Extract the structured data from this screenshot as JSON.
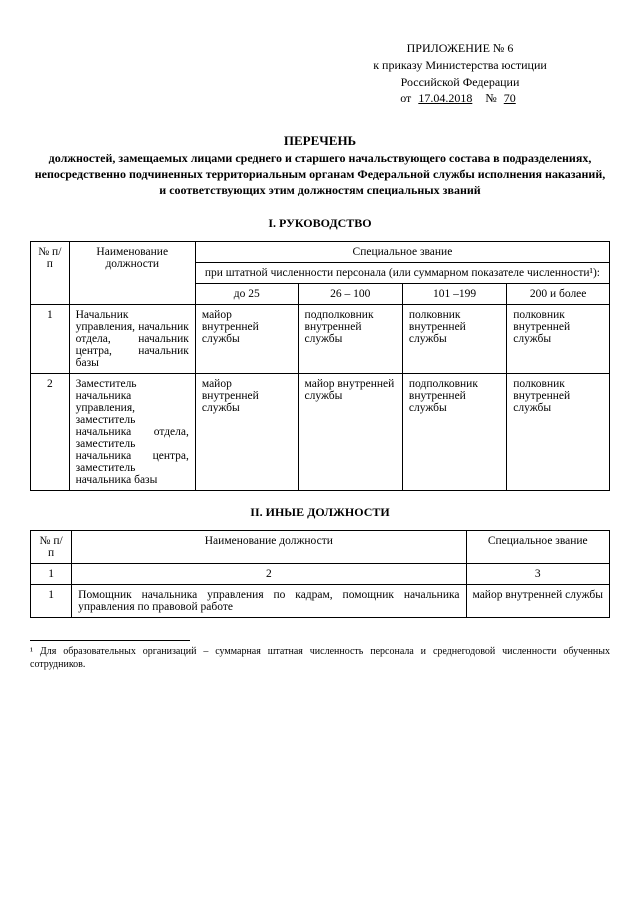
{
  "header": {
    "appendix": "ПРИЛОЖЕНИЕ № 6",
    "line1": "к приказу Министерства юстиции",
    "line2": "Российской Федерации",
    "ot": "от",
    "date": "17.04.2018",
    "no": "№",
    "number": "70"
  },
  "title": {
    "main": "ПЕРЕЧЕНЬ",
    "sub": "должностей, замещаемых лицами среднего и старшего начальствующего состава в подразделениях, непосредственно подчиненных территориальным органам Федеральной службы исполнения наказаний, и соответствующих этим должностям специальных званий"
  },
  "section1": {
    "title": "I. РУКОВОДСТВО",
    "headers": {
      "num": "№ п/п",
      "name": "Наименование должности",
      "spec": "Специальное звание",
      "staff": "при штатной численности персонала (или суммарном показателе численности¹):",
      "c1": "до 25",
      "c2": "26 – 100",
      "c3": "101 –199",
      "c4": "200 и более"
    },
    "rows": [
      {
        "n": "1",
        "name": "Начальник управления, начальник отдела, начальник центра, начальник базы",
        "v1": "майор внутренней службы",
        "v2": "подполковник внутренней службы",
        "v3": "полковник внутренней службы",
        "v4": "полковник внутренней службы"
      },
      {
        "n": "2",
        "name": "Заместитель начальника управления, заместитель начальника отдела, заместитель начальника центра, заместитель начальника базы",
        "v1": "майор внутренней службы",
        "v2": "майор внутренней службы",
        "v3": "подполковник внутренней службы",
        "v4": "полковник внутренней службы"
      }
    ]
  },
  "section2": {
    "title": "II. ИНЫЕ ДОЛЖНОСТИ",
    "headers": {
      "num": "№ п/п",
      "name": "Наименование должности",
      "spec": "Специальное звание",
      "h2": "2",
      "h3": "3"
    },
    "rows": [
      {
        "n": "1",
        "name": "Помощник начальника управления по кадрам, помощник начальника управления по правовой работе",
        "spec": "майор внутренней службы"
      }
    ]
  },
  "footnote": "¹ Для образовательных организаций – суммарная штатная численность персонала и среднегодовой численности обученных сотрудников."
}
